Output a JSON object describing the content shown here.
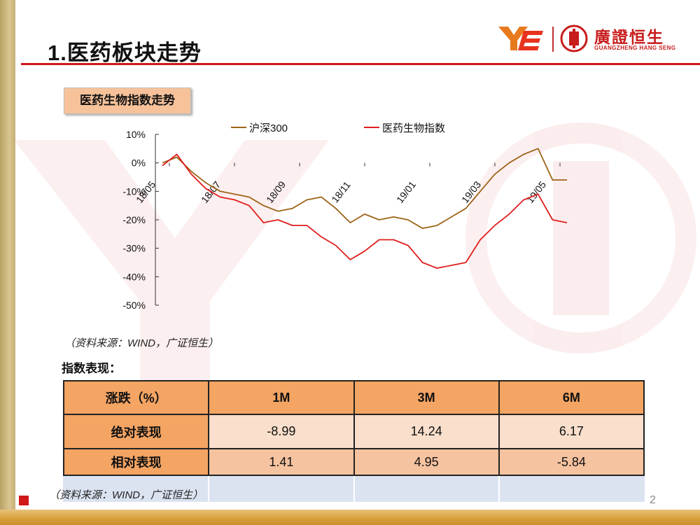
{
  "header": {
    "title": "1.医药板块走势",
    "logo_cn": "廣證恒生",
    "logo_en": "GUANGZHENG HANG SENG"
  },
  "section_label": "医药生物指数走势",
  "colors": {
    "hs300": "#9c6418",
    "pharma": "#e01e1e",
    "accent_red": "#d01818",
    "table_header": "#f4a463"
  },
  "chart_data": {
    "type": "line",
    "title": "",
    "xlabel": "",
    "ylabel": "",
    "ylim": [
      -50,
      10
    ],
    "y_ticks": [
      "10%",
      "0%",
      "-10%",
      "-20%",
      "-30%",
      "-40%",
      "-50%"
    ],
    "x_ticks": [
      "18/05",
      "18/07",
      "18/09",
      "18/11",
      "19/01",
      "19/03",
      "19/05"
    ],
    "legend_position": "top",
    "grid": false,
    "x": [
      "18/05/02",
      "18/05/16",
      "18/05/30",
      "18/06/13",
      "18/06/27",
      "18/07/11",
      "18/07/25",
      "18/08/08",
      "18/08/22",
      "18/09/05",
      "18/09/19",
      "18/10/03",
      "18/10/17",
      "18/10/31",
      "18/11/14",
      "18/11/28",
      "18/12/12",
      "18/12/26",
      "19/01/09",
      "19/01/23",
      "19/02/06",
      "19/02/20",
      "19/03/06",
      "19/03/20",
      "19/04/03",
      "19/04/17",
      "19/05/01",
      "19/05/15",
      "19/05/22"
    ],
    "series": [
      {
        "name": "沪深300",
        "values": [
          0,
          2,
          -3,
          -7,
          -10,
          -11,
          -12,
          -15,
          -17,
          -16,
          -13,
          -12,
          -16,
          -21,
          -18,
          -20,
          -19,
          -20,
          -23,
          -22,
          -19,
          -16,
          -10,
          -4,
          0,
          3,
          5,
          -6,
          -6
        ]
      },
      {
        "name": "医药生物指数",
        "values": [
          -1,
          3,
          -4,
          -9,
          -12,
          -13,
          -15,
          -21,
          -20,
          -22,
          -22,
          -26,
          -29,
          -34,
          -31,
          -27,
          -27,
          -29,
          -35,
          -37,
          -36,
          -35,
          -27,
          -22,
          -18,
          -13,
          -11,
          -20,
          -21
        ]
      }
    ]
  },
  "chart_source": "（资料来源：WIND，广证恒生）",
  "table": {
    "title": "指数表现：",
    "headers": [
      "涨跌（%）",
      "1M",
      "3M",
      "6M"
    ],
    "rows": [
      {
        "label": "绝对表现",
        "values": [
          "-8.99",
          "14.24",
          "6.17"
        ]
      },
      {
        "label": "相对表现",
        "values": [
          "1.41",
          "4.95",
          "-5.84"
        ]
      }
    ]
  },
  "table_source": "（资料来源：WIND，广证恒生）",
  "page_number": "2"
}
